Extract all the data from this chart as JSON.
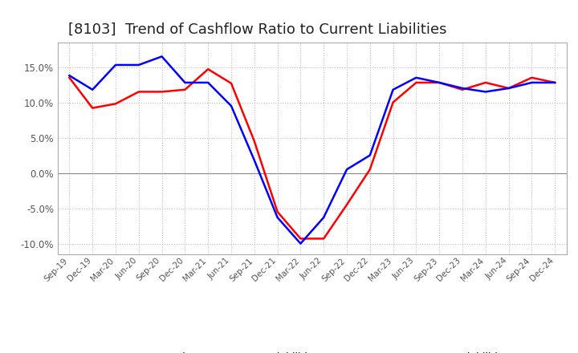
{
  "title": "[8103]  Trend of Cashflow Ratio to Current Liabilities",
  "title_fontsize": 13,
  "x_labels": [
    "Sep-19",
    "Dec-19",
    "Mar-20",
    "Jun-20",
    "Sep-20",
    "Dec-20",
    "Mar-21",
    "Jun-21",
    "Sep-21",
    "Dec-21",
    "Mar-22",
    "Jun-22",
    "Sep-22",
    "Dec-22",
    "Mar-23",
    "Jun-23",
    "Sep-23",
    "Dec-23",
    "Mar-24",
    "Jun-24",
    "Sep-24",
    "Dec-24"
  ],
  "operating_cf": [
    0.135,
    0.092,
    0.098,
    0.115,
    0.115,
    0.118,
    0.147,
    0.127,
    0.045,
    -0.055,
    -0.093,
    -0.093,
    -0.045,
    0.005,
    0.1,
    0.128,
    0.128,
    0.118,
    0.128,
    0.12,
    0.135,
    0.128
  ],
  "free_cf": [
    0.138,
    0.118,
    0.153,
    0.153,
    0.165,
    0.128,
    0.128,
    0.095,
    0.018,
    -0.063,
    -0.1,
    -0.063,
    0.005,
    0.025,
    0.118,
    0.135,
    0.128,
    0.12,
    0.115,
    0.12,
    0.128,
    0.128
  ],
  "operating_color": "#ff0000",
  "free_color": "#0000ff",
  "ylim": [
    -0.115,
    0.185
  ],
  "yticks": [
    -0.1,
    -0.05,
    0.0,
    0.05,
    0.1,
    0.15
  ],
  "background_color": "#ffffff",
  "grid_color": "#bbbbbb",
  "zero_line_color": "#888888",
  "legend_op": "Operating CF to Current Liabilities",
  "legend_free": "Free CF to Current Liabilities"
}
